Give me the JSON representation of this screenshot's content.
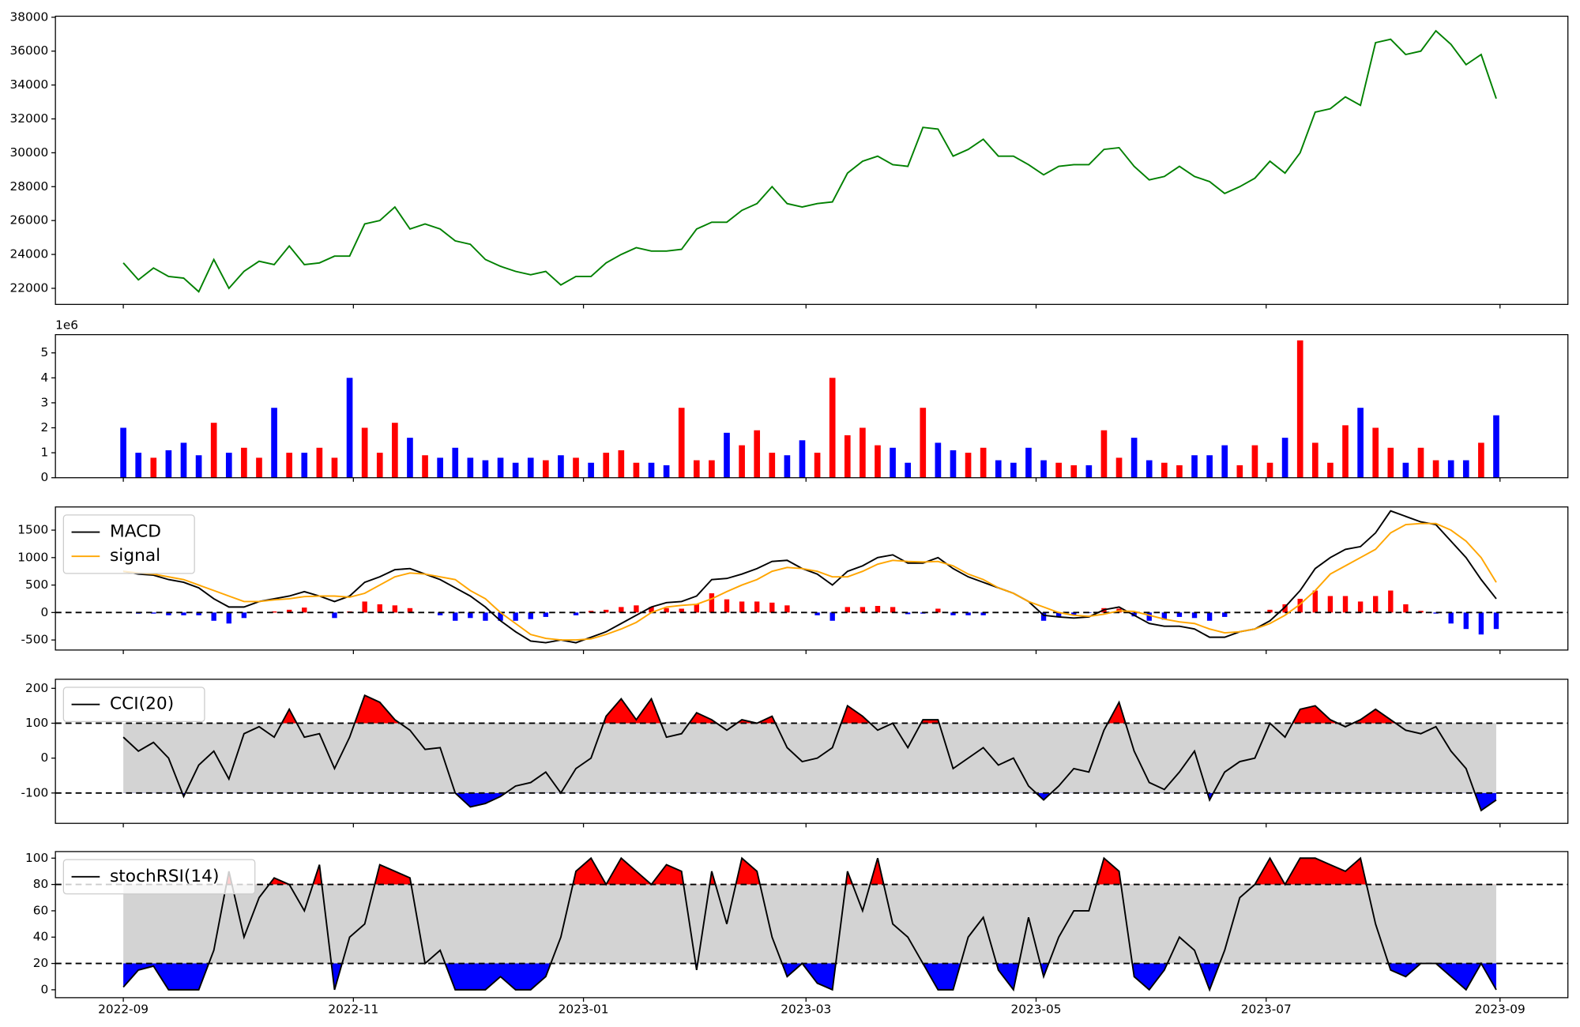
{
  "chart_data": [
    {
      "type": "line",
      "color": "green",
      "x": [
        0,
        4,
        8,
        12,
        16,
        20,
        24,
        28,
        32,
        36,
        40,
        44,
        48,
        52,
        56,
        60,
        64,
        68,
        72,
        76,
        80,
        84,
        88,
        92,
        96,
        100,
        104,
        108,
        112,
        116,
        120,
        124,
        128,
        132,
        136,
        140,
        144,
        148,
        152,
        156,
        160,
        164,
        168,
        172,
        176,
        180,
        184,
        188,
        192,
        196,
        200,
        204,
        208,
        212,
        216,
        220,
        224,
        228,
        232,
        236,
        240,
        244,
        248,
        252,
        256,
        260,
        264,
        268,
        272,
        276,
        280,
        284,
        288,
        292,
        296,
        300,
        304,
        308,
        312,
        316,
        320,
        324,
        328,
        332,
        336,
        340,
        344,
        348,
        352,
        356,
        360,
        364
      ],
      "xlim": [
        -18,
        383
      ],
      "values": [
        23500,
        22500,
        23200,
        22700,
        22600,
        21800,
        23700,
        22000,
        23000,
        23600,
        23400,
        24500,
        23400,
        23500,
        23900,
        23900,
        25800,
        26000,
        26800,
        25500,
        25800,
        25500,
        24800,
        24600,
        23700,
        23300,
        23000,
        22800,
        23000,
        22200,
        22700,
        22700,
        23500,
        24000,
        24400,
        24200,
        24200,
        24300,
        25500,
        25900,
        25900,
        26600,
        27000,
        28000,
        27000,
        26800,
        27000,
        27100,
        28800,
        29500,
        29800,
        29300,
        29200,
        31500,
        31400,
        29800,
        30200,
        30800,
        29800,
        29800,
        29300,
        28700,
        29200,
        29300,
        29300,
        30200,
        30300,
        29200,
        28400,
        28600,
        29200,
        28600,
        28300,
        27600,
        28000,
        28500,
        29500,
        28800,
        30000,
        32400,
        32600,
        33300,
        32800,
        36500,
        36700,
        35800,
        36000,
        37200,
        36400,
        35200,
        35800,
        33200
      ],
      "ylim": [
        21050,
        38060
      ],
      "yticks": [
        22000,
        24000,
        26000,
        28000,
        30000,
        32000,
        34000,
        36000,
        38000
      ]
    },
    {
      "type": "bar",
      "offset_label": "1e6",
      "up_color": "red",
      "down_color": "blue",
      "values": [
        2.0,
        1.0,
        0.8,
        1.1,
        1.4,
        0.9,
        2.2,
        1.0,
        1.2,
        0.8,
        2.8,
        1.0,
        1.0,
        1.2,
        0.8,
        4.0,
        2.0,
        1.0,
        2.2,
        1.6,
        0.9,
        0.8,
        1.2,
        0.8,
        0.7,
        0.8,
        0.6,
        0.8,
        0.7,
        0.9,
        0.8,
        0.6,
        1.0,
        1.1,
        0.6,
        0.6,
        0.5,
        2.8,
        0.7,
        0.7,
        1.8,
        1.3,
        1.9,
        1.0,
        0.9,
        1.5,
        1.0,
        4.0,
        1.7,
        2.0,
        1.3,
        1.2,
        0.6,
        2.8,
        1.4,
        1.1,
        1.0,
        1.2,
        0.7,
        0.6,
        1.2,
        0.7,
        0.6,
        0.5,
        0.5,
        1.9,
        0.8,
        1.6,
        0.7,
        0.6,
        0.5,
        0.9,
        0.9,
        1.3,
        0.5,
        1.3,
        0.6,
        1.6,
        5.5,
        1.4,
        0.6,
        2.1,
        2.8,
        2.0,
        1.2,
        0.6,
        1.2,
        0.7,
        0.7,
        0.7,
        1.4,
        2.5
      ],
      "ylim": [
        0,
        5.73
      ],
      "yticks": [
        0,
        1,
        2,
        3,
        4,
        5
      ]
    },
    {
      "type": "macd",
      "legend": "upper left",
      "series": [
        {
          "name": "MACD",
          "color": "black",
          "values": [
            750,
            700,
            680,
            600,
            550,
            450,
            250,
            100,
            100,
            200,
            250,
            300,
            380,
            300,
            200,
            300,
            550,
            650,
            780,
            800,
            700,
            600,
            450,
            300,
            100,
            -150,
            -350,
            -520,
            -550,
            -500,
            -550,
            -450,
            -350,
            -200,
            -50,
            100,
            180,
            200,
            300,
            600,
            620,
            700,
            800,
            930,
            950,
            800,
            700,
            500,
            750,
            850,
            1000,
            1050,
            900,
            900,
            1000,
            800,
            650,
            550,
            450,
            350,
            200,
            -50,
            -80,
            -100,
            -80,
            50,
            100,
            -50,
            -200,
            -250,
            -250,
            -300,
            -450,
            -450,
            -350,
            -300,
            -150,
            100,
            400,
            800,
            1000,
            1150,
            1200,
            1450,
            1850,
            1750,
            1650,
            1600,
            1300,
            1000,
            600,
            250
          ]
        },
        {
          "name": "signal",
          "color": "orange",
          "values": [
            750,
            720,
            700,
            650,
            600,
            500,
            400,
            300,
            200,
            200,
            230,
            250,
            290,
            300,
            300,
            280,
            350,
            500,
            650,
            720,
            700,
            650,
            600,
            400,
            250,
            0,
            -200,
            -400,
            -470,
            -500,
            -500,
            -480,
            -400,
            -300,
            -180,
            0,
            100,
            130,
            150,
            250,
            380,
            500,
            600,
            750,
            820,
            800,
            750,
            650,
            650,
            750,
            880,
            950,
            930,
            920,
            930,
            850,
            700,
            600,
            450,
            350,
            200,
            100,
            0,
            -50,
            -70,
            -30,
            30,
            20,
            -50,
            -120,
            -170,
            -200,
            -300,
            -370,
            -350,
            -300,
            -200,
            -50,
            150,
            400,
            700,
            850,
            1000,
            1150,
            1450,
            1600,
            1620,
            1620,
            1500,
            1300,
            1000,
            550
          ]
        }
      ],
      "histogram": {
        "up_color": "red",
        "down_color": "blue",
        "values": [
          0,
          -20,
          -20,
          -50,
          -50,
          -50,
          -150,
          -200,
          -100,
          0,
          20,
          50,
          90,
          0,
          -100,
          20,
          200,
          150,
          130,
          80,
          0,
          -50,
          -150,
          -100,
          -150,
          -150,
          -150,
          -120,
          -80,
          0,
          -50,
          30,
          50,
          100,
          130,
          100,
          80,
          70,
          150,
          350,
          240,
          200,
          200,
          180,
          130,
          0,
          -50,
          -150,
          100,
          100,
          120,
          100,
          -30,
          -20,
          70,
          -50,
          -50,
          -50,
          0,
          0,
          0,
          -150,
          -80,
          -50,
          -10,
          80,
          70,
          -70,
          -150,
          -130,
          -80,
          -100,
          -150,
          -80,
          0,
          0,
          50,
          150,
          250,
          400,
          300,
          300,
          200,
          300,
          400,
          150,
          30,
          -20,
          -200,
          -300,
          -400,
          -300
        ]
      },
      "thresholds": [
        0
      ],
      "ylim": [
        -683,
        1922
      ],
      "yticks": [
        -500,
        0,
        500,
        1000,
        1500
      ]
    },
    {
      "type": "oscillator",
      "legend": "upper left",
      "upper_fill": "red",
      "lower_fill": "blue",
      "band_color": "lightgray",
      "series": [
        {
          "name": "CCI(20)",
          "color": "black",
          "values": [
            60,
            20,
            45,
            0,
            -110,
            -20,
            20,
            -60,
            70,
            90,
            60,
            140,
            60,
            70,
            -30,
            60,
            180,
            160,
            110,
            80,
            25,
            30,
            -100,
            -140,
            -130,
            -110,
            -80,
            -70,
            -40,
            -100,
            -30,
            0,
            120,
            170,
            110,
            170,
            60,
            70,
            130,
            110,
            80,
            110,
            100,
            120,
            30,
            -10,
            0,
            30,
            150,
            120,
            80,
            100,
            30,
            110,
            110,
            -30,
            0,
            30,
            -20,
            0,
            -80,
            -120,
            -80,
            -30,
            -40,
            80,
            160,
            20,
            -70,
            -90,
            -40,
            20,
            -120,
            -40,
            -10,
            0,
            100,
            60,
            140,
            150,
            110,
            90,
            110,
            140,
            110,
            80,
            70,
            90,
            20,
            -30,
            -150,
            -120
          ]
        }
      ],
      "thresholds": [
        -100,
        100
      ],
      "ylim": [
        -187,
        226
      ],
      "yticks": [
        -100,
        0,
        100,
        200
      ]
    },
    {
      "type": "oscillator",
      "legend": "upper left",
      "upper_fill": "red",
      "lower_fill": "blue",
      "band_color": "lightgray",
      "series": [
        {
          "name": "stochRSI(14)",
          "color": "black",
          "values": [
            2,
            15,
            18,
            0,
            0,
            0,
            30,
            90,
            40,
            70,
            85,
            80,
            60,
            95,
            0,
            40,
            50,
            95,
            90,
            85,
            20,
            30,
            0,
            0,
            0,
            10,
            0,
            0,
            10,
            40,
            90,
            100,
            80,
            100,
            90,
            80,
            95,
            90,
            15,
            90,
            50,
            100,
            90,
            40,
            10,
            20,
            5,
            0,
            90,
            60,
            100,
            50,
            40,
            20,
            0,
            0,
            40,
            55,
            15,
            0,
            55,
            10,
            40,
            60,
            60,
            100,
            90,
            10,
            0,
            15,
            40,
            30,
            0,
            30,
            70,
            80,
            100,
            80,
            100,
            100,
            95,
            90,
            100,
            50,
            15,
            10,
            20,
            20,
            10,
            0,
            20,
            0
          ]
        }
      ],
      "thresholds": [
        20,
        80
      ],
      "ylim": [
        -6,
        105
      ],
      "yticks": [
        0,
        20,
        40,
        60,
        80,
        100
      ],
      "xticks": [
        {
          "value": 0,
          "label": "2022-09"
        },
        {
          "value": 61,
          "label": "2022-11"
        },
        {
          "value": 122,
          "label": "2023-01"
        },
        {
          "value": 181,
          "label": "2023-03"
        },
        {
          "value": 242,
          "label": "2023-05"
        },
        {
          "value": 303,
          "label": "2023-07"
        },
        {
          "value": 365,
          "label": "2023-09"
        }
      ]
    }
  ]
}
